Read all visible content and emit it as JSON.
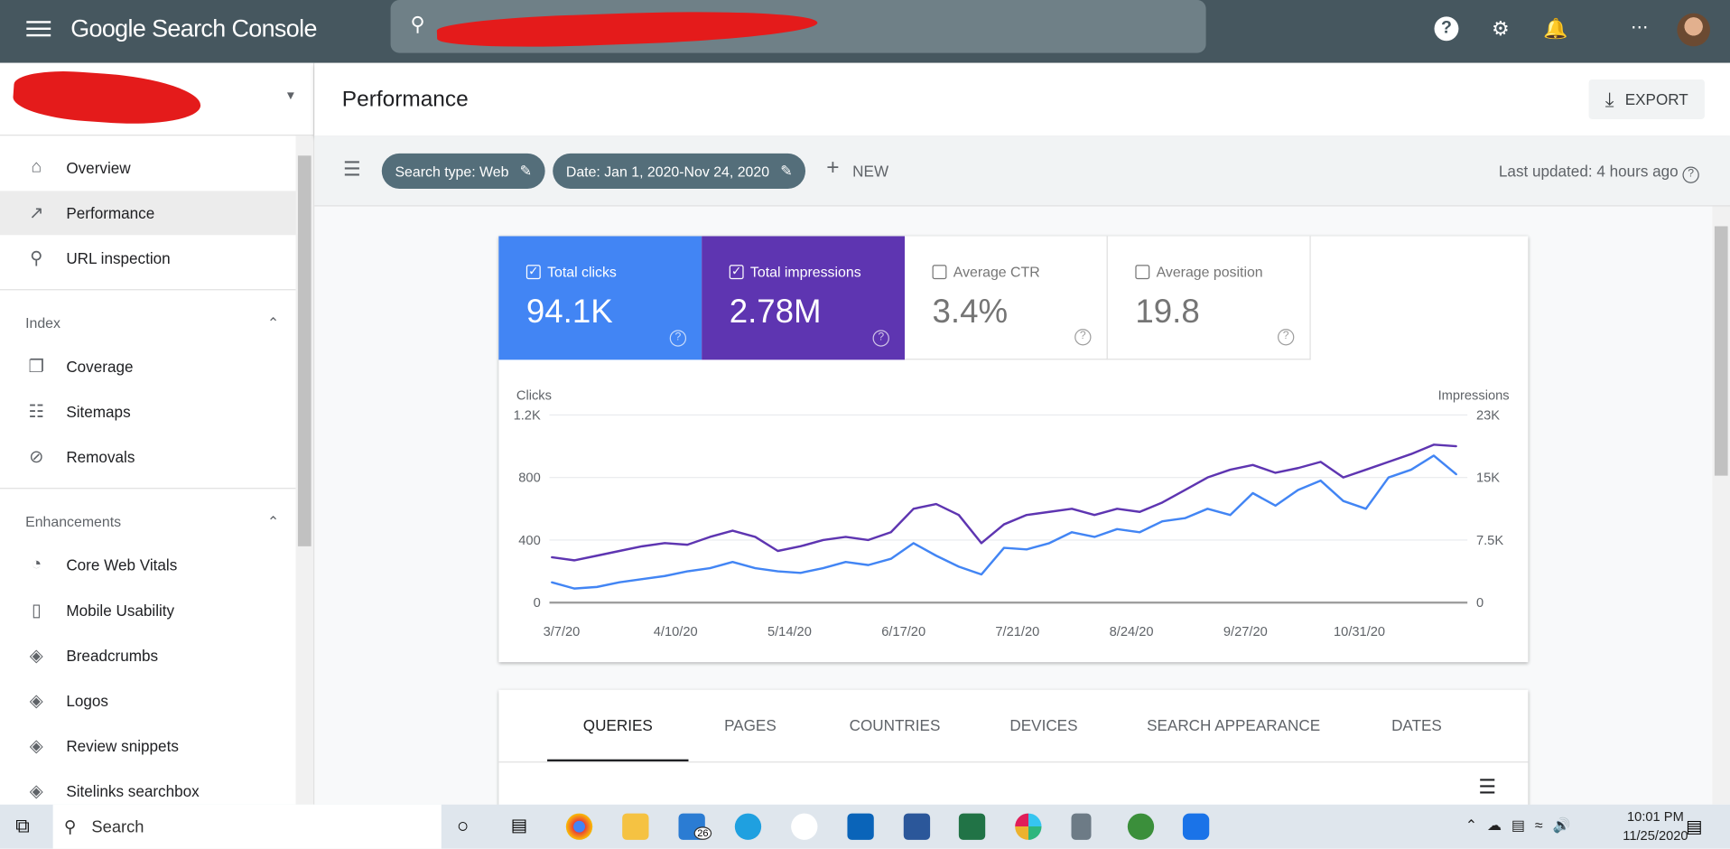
{
  "header": {
    "app_title": "Google Search Console",
    "icons": [
      "menu-icon",
      "search-icon",
      "help-icon",
      "user-settings-icon",
      "notifications-icon",
      "apps-icon",
      "avatar"
    ]
  },
  "sidebar": {
    "items": [
      {
        "label": "Overview",
        "icon": "home-icon"
      },
      {
        "label": "Performance",
        "icon": "trending-icon"
      },
      {
        "label": "URL inspection",
        "icon": "search-icon"
      }
    ],
    "index_section": {
      "title": "Index",
      "items": [
        {
          "label": "Coverage",
          "icon": "copy-icon"
        },
        {
          "label": "Sitemaps",
          "icon": "sitemap-icon"
        },
        {
          "label": "Removals",
          "icon": "eye-off-icon"
        }
      ]
    },
    "enh_section": {
      "title": "Enhancements",
      "items": [
        {
          "label": "Core Web Vitals",
          "icon": "gauge-icon"
        },
        {
          "label": "Mobile Usability",
          "icon": "phone-icon"
        },
        {
          "label": "Breadcrumbs",
          "icon": "layers-icon"
        },
        {
          "label": "Logos",
          "icon": "layers-icon"
        },
        {
          "label": "Review snippets",
          "icon": "layers-icon"
        },
        {
          "label": "Sitelinks searchbox",
          "icon": "layers-icon"
        }
      ]
    }
  },
  "page": {
    "title": "Performance",
    "export_label": "EXPORT"
  },
  "filters": {
    "search_type": "Search type: Web",
    "date": "Date: Jan 1, 2020-Nov 24, 2020",
    "new_label": "NEW",
    "last_updated": "Last updated: 4 hours ago"
  },
  "metrics": [
    {
      "label": "Total clicks",
      "value": "94.1K",
      "checked": true,
      "color": "#4285f4"
    },
    {
      "label": "Total impressions",
      "value": "2.78M",
      "checked": true,
      "color": "#5e35b1"
    },
    {
      "label": "Average CTR",
      "value": "3.4%",
      "checked": false
    },
    {
      "label": "Average position",
      "value": "19.8",
      "checked": false
    }
  ],
  "chart_data": {
    "type": "line",
    "left_axis_label": "Clicks",
    "right_axis_label": "Impressions",
    "left_ticks": [
      "0",
      "400",
      "800",
      "1.2K"
    ],
    "right_ticks": [
      "0",
      "7.5K",
      "15K",
      "23K"
    ],
    "ylim_left": [
      0,
      1200
    ],
    "ylim_right": [
      0,
      23000
    ],
    "x_start": "3/4/20",
    "x_end": "11/24/20",
    "x_ticks": [
      "3/7/20",
      "4/10/20",
      "5/14/20",
      "6/17/20",
      "7/21/20",
      "8/24/20",
      "9/27/20",
      "10/31/20"
    ],
    "series": [
      {
        "name": "Clicks",
        "color": "#4285f4",
        "axis": "left",
        "values": [
          130,
          90,
          100,
          130,
          150,
          170,
          200,
          220,
          260,
          220,
          200,
          190,
          220,
          260,
          240,
          280,
          380,
          300,
          230,
          180,
          350,
          340,
          380,
          450,
          420,
          470,
          450,
          520,
          540,
          600,
          560,
          700,
          620,
          720,
          780,
          650,
          600,
          800,
          850,
          940,
          820
        ]
      },
      {
        "name": "Impressions",
        "color": "#5e35b1",
        "axis": "right",
        "values": [
          5560,
          5180,
          5750,
          6330,
          6900,
          7290,
          7090,
          8050,
          8820,
          8050,
          6330,
          6900,
          7670,
          8050,
          7670,
          8630,
          11500,
          12080,
          10740,
          7290,
          9590,
          10740,
          11120,
          11500,
          10740,
          11500,
          11120,
          12270,
          13800,
          15340,
          16290,
          16870,
          15910,
          16490,
          17250,
          15340,
          16290,
          17250,
          18210,
          19360,
          19170
        ]
      }
    ]
  },
  "tabs": [
    "QUERIES",
    "PAGES",
    "COUNTRIES",
    "DEVICES",
    "SEARCH APPEARANCE",
    "DATES"
  ],
  "taskbar": {
    "search_placeholder": "Search",
    "mail_badge": "26",
    "time": "10:01 PM",
    "date": "11/25/2020"
  }
}
